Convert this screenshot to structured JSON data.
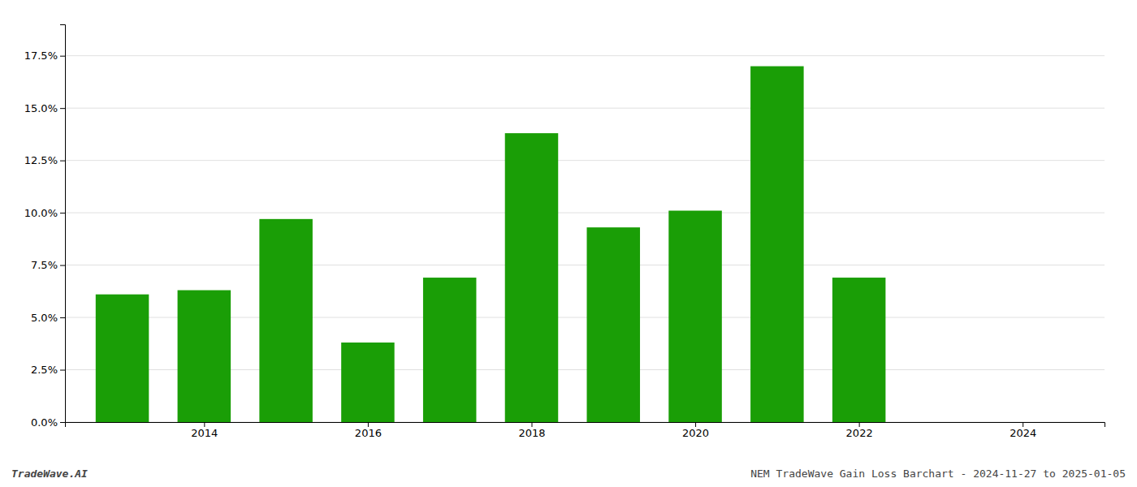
{
  "chart_data": {
    "type": "bar",
    "x": [
      2013,
      2014,
      2015,
      2016,
      2017,
      2018,
      2019,
      2020,
      2021,
      2022
    ],
    "values": [
      0.061,
      0.063,
      0.097,
      0.038,
      0.069,
      0.138,
      0.093,
      0.101,
      0.17,
      0.069
    ],
    "color": "#1a9e06",
    "xlim": [
      2012.3,
      2025.0
    ],
    "xticks": [
      2014,
      2016,
      2018,
      2020,
      2022,
      2024
    ],
    "ylim": [
      0,
      0.19
    ],
    "yticks": [
      {
        "value": 0.0,
        "label": "0.0%"
      },
      {
        "value": 0.025,
        "label": "2.5%"
      },
      {
        "value": 0.05,
        "label": "5.0%"
      },
      {
        "value": 0.075,
        "label": "7.5%"
      },
      {
        "value": 0.1,
        "label": "10.0%"
      },
      {
        "value": 0.125,
        "label": "12.5%"
      },
      {
        "value": 0.15,
        "label": "15.0%"
      },
      {
        "value": 0.175,
        "label": "17.5%"
      }
    ],
    "grid": true,
    "annotations": [
      "TradeWave.AI",
      "NEM TradeWave Gain Loss Barchart - 2024-11-27 to 2025-01-05"
    ]
  }
}
